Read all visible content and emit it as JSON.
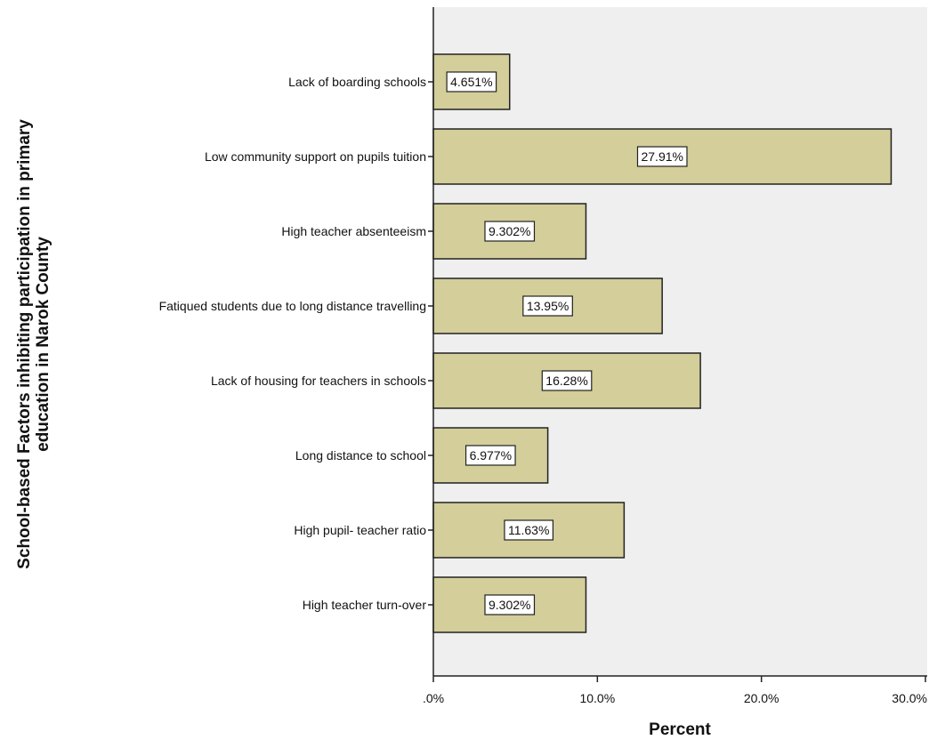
{
  "chart_data": {
    "type": "bar",
    "orientation": "horizontal",
    "ylabel_lines": [
      "School-based Factors inhibiting participation in primary",
      "education in Narok County"
    ],
    "xlabel": "Percent",
    "categories": [
      "Lack of boarding schools",
      "Low community support on pupils tuition",
      "High teacher absenteeism",
      "Fatiqued students due to long distance travelling",
      "Lack of housing for teachers in schools",
      "Long distance to school",
      "High pupil- teacher ratio",
      "High teacher turn-over"
    ],
    "values": [
      4.651,
      27.91,
      9.302,
      13.95,
      16.28,
      6.977,
      11.63,
      9.302
    ],
    "value_labels": [
      "4.651%",
      "27.91%",
      "9.302%",
      "13.95%",
      "16.28%",
      "6.977%",
      "11.63%",
      "9.302%"
    ],
    "xlim": [
      0,
      30
    ],
    "xticks": [
      0,
      10,
      20,
      30
    ],
    "xtick_labels": [
      ".0%",
      "10.0%",
      "20.0%",
      "30.0%"
    ],
    "colors": {
      "bar_fill": "#d3ce9a",
      "bar_stroke": "#222222",
      "plot_background": "#efefef",
      "axis": "#222222"
    },
    "grid": false,
    "legend": "none"
  }
}
